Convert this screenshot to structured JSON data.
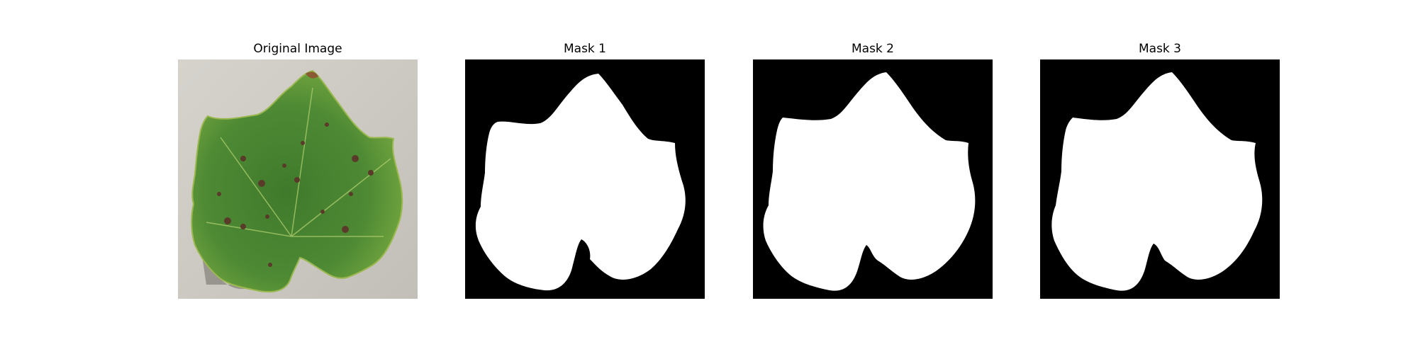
{
  "figure": {
    "panels": [
      {
        "title": "Original Image",
        "kind": "photo"
      },
      {
        "title": "Mask 1",
        "kind": "mask",
        "variant": "mask1"
      },
      {
        "title": "Mask 2",
        "kind": "mask",
        "variant": "mask2"
      },
      {
        "title": "Mask 3",
        "kind": "mask",
        "variant": "mask3"
      }
    ]
  },
  "colors": {
    "background": "#ffffff",
    "mask_background": "#000000",
    "mask_foreground": "#ffffff",
    "leaf_green": "#4e8a34",
    "leaf_highlight": "#8fbf4a",
    "leaf_spot": "#5a3b2a",
    "photo_background": "#cfccc6"
  }
}
